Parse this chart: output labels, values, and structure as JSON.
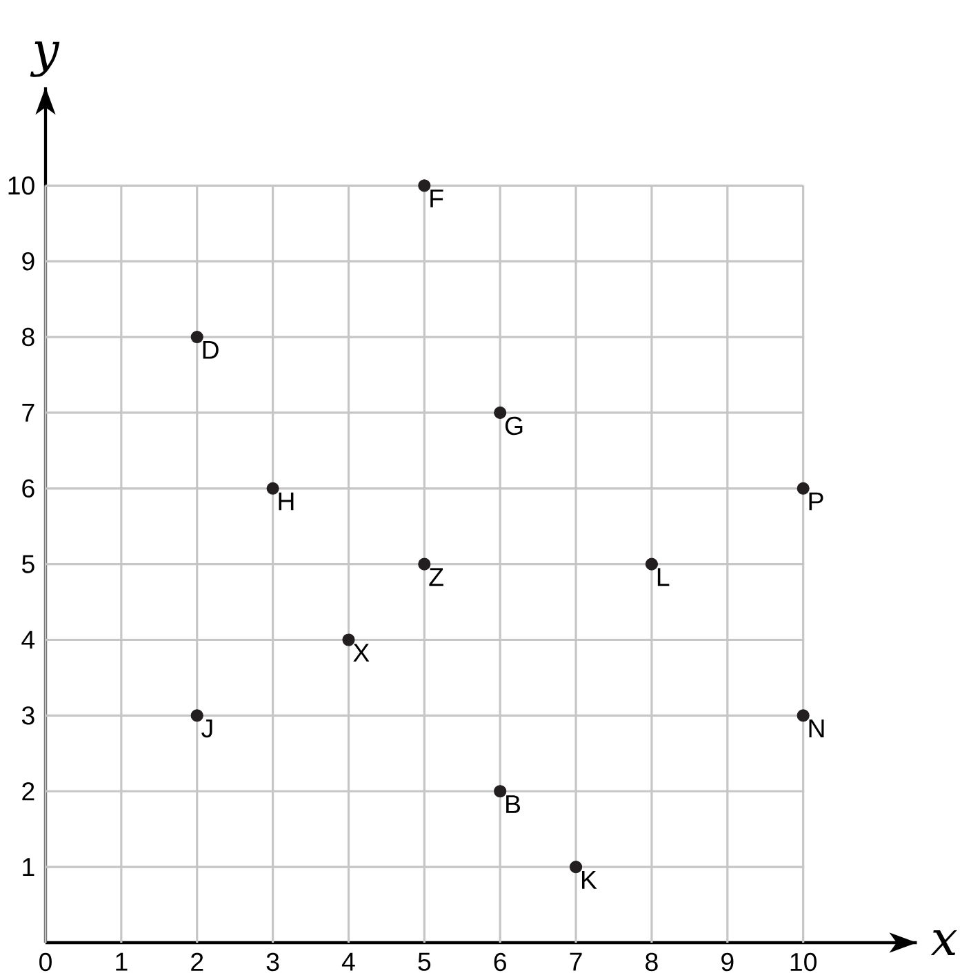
{
  "chart_data": {
    "type": "scatter",
    "xlabel": "x",
    "ylabel": "y",
    "x": [
      5,
      2,
      6,
      3,
      10,
      5,
      8,
      4,
      2,
      10,
      6,
      7
    ],
    "values": [
      10,
      8,
      7,
      6,
      6,
      5,
      5,
      4,
      3,
      3,
      2,
      1
    ],
    "color": "#231f20",
    "marker": "circle",
    "grid": true,
    "xlim": [
      0,
      11.5
    ],
    "ylim": [
      0,
      11.3
    ],
    "xticks": [
      0,
      1,
      2,
      3,
      4,
      5,
      6,
      7,
      8,
      9,
      10
    ],
    "yticks": [
      1,
      2,
      3,
      4,
      5,
      6,
      7,
      8,
      9,
      10
    ],
    "annotations": [
      {
        "text": "F",
        "x": 5,
        "y": 10
      },
      {
        "text": "D",
        "x": 2,
        "y": 8
      },
      {
        "text": "G",
        "x": 6,
        "y": 7
      },
      {
        "text": "H",
        "x": 3,
        "y": 6
      },
      {
        "text": "P",
        "x": 10,
        "y": 6
      },
      {
        "text": "Z",
        "x": 5,
        "y": 5
      },
      {
        "text": "L",
        "x": 8,
        "y": 5
      },
      {
        "text": "X",
        "x": 4,
        "y": 4
      },
      {
        "text": "J",
        "x": 2,
        "y": 3
      },
      {
        "text": "N",
        "x": 10,
        "y": 3
      },
      {
        "text": "B",
        "x": 6,
        "y": 2
      },
      {
        "text": "K",
        "x": 7,
        "y": 1
      }
    ]
  }
}
